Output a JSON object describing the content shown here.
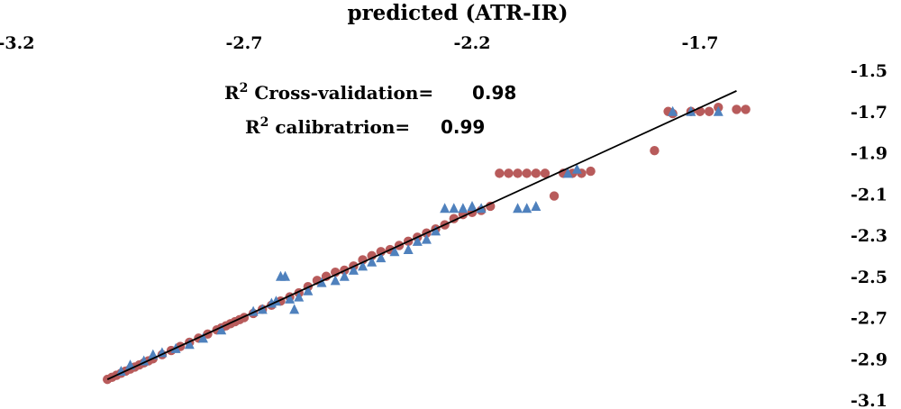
{
  "chart_data": {
    "type": "scatter",
    "title": "predicted (ATR-IR)",
    "xlabel": "",
    "ylabel": "",
    "xlim": [
      -3.2,
      -1.55
    ],
    "ylim": [
      -3.1,
      -1.5
    ],
    "x_ticks": [
      "-3.2",
      "-2.7",
      "-2.2",
      "-1.7"
    ],
    "y_ticks": [
      "-1.5",
      "-1.7",
      "-1.9",
      "-2.1",
      "-2.3",
      "-2.5",
      "-2.7",
      "-2.9",
      "-3.1"
    ],
    "x_axis_position": "top",
    "y_axis_position": "right",
    "grid": false,
    "legend": "none",
    "annotations": [
      {
        "label": "R",
        "sup": "2",
        "text": " Cross-validation=",
        "value": "0.98"
      },
      {
        "label": "R",
        "sup": "2",
        "text": " calibratrion=",
        "value": "0.99"
      }
    ],
    "series": [
      {
        "marker": "circle",
        "color": "#b85b5b",
        "x": [
          -3.0,
          -2.99,
          -2.98,
          -2.97,
          -2.96,
          -2.95,
          -2.94,
          -2.93,
          -2.92,
          -2.91,
          -2.9,
          -2.88,
          -2.86,
          -2.84,
          -2.82,
          -2.8,
          -2.78,
          -2.76,
          -2.75,
          -2.74,
          -2.73,
          -2.72,
          -2.71,
          -2.7,
          -2.68,
          -2.66,
          -2.64,
          -2.62,
          -2.6,
          -2.58,
          -2.56,
          -2.54,
          -2.52,
          -2.5,
          -2.48,
          -2.46,
          -2.44,
          -2.42,
          -2.4,
          -2.38,
          -2.36,
          -2.34,
          -2.32,
          -2.3,
          -2.28,
          -2.26,
          -2.24,
          -2.22,
          -2.2,
          -2.18,
          -2.16,
          -2.14,
          -2.12,
          -2.1,
          -2.08,
          -2.06,
          -2.04,
          -2.02,
          -2.0,
          -1.98,
          -1.96,
          -1.94,
          -1.8,
          -1.77,
          -1.76,
          -1.72,
          -1.7,
          -1.68,
          -1.66,
          -1.62,
          -1.6
        ],
        "y": [
          -3.0,
          -2.99,
          -2.98,
          -2.97,
          -2.96,
          -2.95,
          -2.94,
          -2.93,
          -2.92,
          -2.91,
          -2.9,
          -2.88,
          -2.86,
          -2.84,
          -2.82,
          -2.8,
          -2.78,
          -2.76,
          -2.75,
          -2.74,
          -2.73,
          -2.72,
          -2.71,
          -2.7,
          -2.68,
          -2.66,
          -2.64,
          -2.62,
          -2.6,
          -2.58,
          -2.55,
          -2.52,
          -2.5,
          -2.48,
          -2.47,
          -2.45,
          -2.42,
          -2.4,
          -2.38,
          -2.37,
          -2.35,
          -2.33,
          -2.31,
          -2.29,
          -2.27,
          -2.25,
          -2.22,
          -2.2,
          -2.19,
          -2.18,
          -2.16,
          -2.0,
          -2.0,
          -2.0,
          -2.0,
          -2.0,
          -2.0,
          -2.11,
          -2.0,
          -2.0,
          -2.0,
          -1.99,
          -1.89,
          -1.7,
          -1.71,
          -1.7,
          -1.7,
          -1.7,
          -1.68,
          -1.69,
          -1.69
        ]
      },
      {
        "marker": "triangle",
        "color": "#4f81bd",
        "x": [
          -2.97,
          -2.95,
          -2.92,
          -2.9,
          -2.88,
          -2.85,
          -2.82,
          -2.79,
          -2.75,
          -2.68,
          -2.66,
          -2.64,
          -2.63,
          -2.62,
          -2.61,
          -2.6,
          -2.59,
          -2.58,
          -2.56,
          -2.53,
          -2.5,
          -2.48,
          -2.46,
          -2.44,
          -2.42,
          -2.4,
          -2.37,
          -2.34,
          -2.32,
          -2.3,
          -2.28,
          -2.26,
          -2.24,
          -2.22,
          -2.2,
          -2.18,
          -2.1,
          -2.08,
          -2.06,
          -1.99,
          -1.97,
          -1.76,
          -1.72,
          -1.66
        ],
        "y": [
          -2.96,
          -2.93,
          -2.91,
          -2.88,
          -2.87,
          -2.85,
          -2.83,
          -2.8,
          -2.76,
          -2.67,
          -2.66,
          -2.63,
          -2.62,
          -2.5,
          -2.5,
          -2.61,
          -2.66,
          -2.6,
          -2.57,
          -2.53,
          -2.52,
          -2.5,
          -2.47,
          -2.45,
          -2.43,
          -2.41,
          -2.38,
          -2.37,
          -2.33,
          -2.32,
          -2.28,
          -2.17,
          -2.17,
          -2.17,
          -2.16,
          -2.17,
          -2.17,
          -2.17,
          -2.16,
          -2.0,
          -1.98,
          -1.7,
          -1.7,
          -1.7
        ]
      }
    ],
    "fit_line": {
      "color": "#000000",
      "x": [
        -3.0,
        -1.62
      ],
      "y": [
        -3.0,
        -1.6
      ]
    }
  }
}
